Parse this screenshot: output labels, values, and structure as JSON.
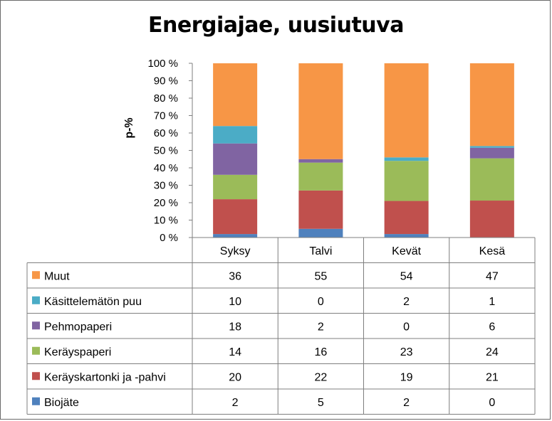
{
  "chart_data": {
    "type": "bar",
    "stacked": true,
    "percent": true,
    "title": "Energiajae, uusiutuva",
    "ylabel": "p-%",
    "xlabel": "",
    "ylim": [
      0,
      100
    ],
    "y_ticks": [
      "0 %",
      "10 %",
      "20 %",
      "30 %",
      "40 %",
      "50 %",
      "60 %",
      "70 %",
      "80 %",
      "90 %",
      "100 %"
    ],
    "categories": [
      "Syksy",
      "Talvi",
      "Kevät",
      "Kesä"
    ],
    "series": [
      {
        "name": "Biojäte",
        "color": "#4f81bd",
        "values": [
          2,
          5,
          2,
          0
        ]
      },
      {
        "name": "Keräyskartonki ja -pahvi",
        "color": "#c0504d",
        "values": [
          20,
          22,
          19,
          21
        ]
      },
      {
        "name": "Keräyspaperi",
        "color": "#9bbb59",
        "values": [
          14,
          16,
          23,
          24
        ]
      },
      {
        "name": "Pehmopaperi",
        "color": "#8064a2",
        "values": [
          18,
          2,
          0,
          6
        ]
      },
      {
        "name": "Käsittelemätön puu",
        "color": "#4bacc6",
        "values": [
          10,
          0,
          2,
          1
        ]
      },
      {
        "name": "Muut",
        "color": "#f79646",
        "values": [
          36,
          55,
          54,
          47
        ]
      }
    ],
    "legend": "data table",
    "grid": false
  }
}
